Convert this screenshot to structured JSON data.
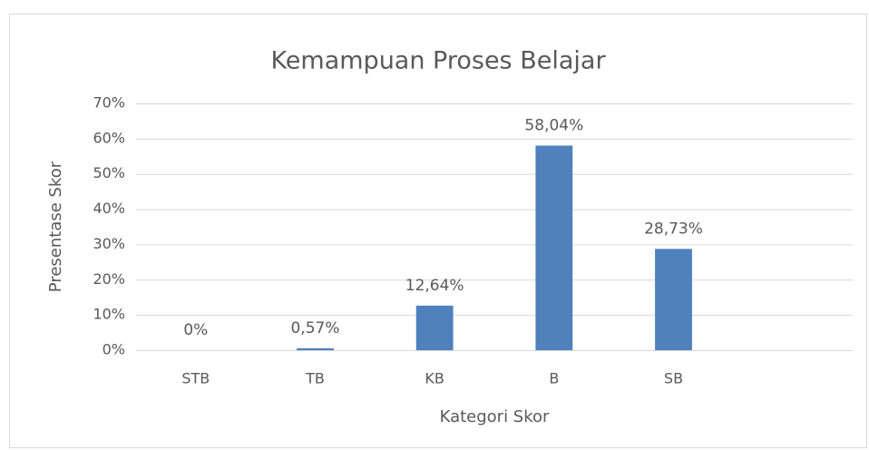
{
  "chart_data": {
    "type": "bar",
    "title": "Kemampuan Proses Belajar",
    "x_label": "Kategori Skor",
    "y_label": "Presentase Skor",
    "categories": [
      "STB",
      "TB",
      "KB",
      "B",
      "SB",
      null
    ],
    "values": [
      0,
      0.57,
      12.64,
      58.04,
      28.73,
      null
    ],
    "value_labels": [
      "0%",
      "0,57%",
      "12,64%",
      "58,04%",
      "28,73%",
      null
    ],
    "color": "#4f81bd",
    "ylim": [
      0,
      70
    ],
    "yticks": [
      {
        "value": 0,
        "label": "0%"
      },
      {
        "value": 10,
        "label": "10%"
      },
      {
        "value": 20,
        "label": "20%"
      },
      {
        "value": 30,
        "label": "30%"
      },
      {
        "value": 40,
        "label": "40%"
      },
      {
        "value": 50,
        "label": "50%"
      },
      {
        "value": 60,
        "label": "60%"
      },
      {
        "value": 70,
        "label": "70%"
      }
    ],
    "grid": true
  }
}
